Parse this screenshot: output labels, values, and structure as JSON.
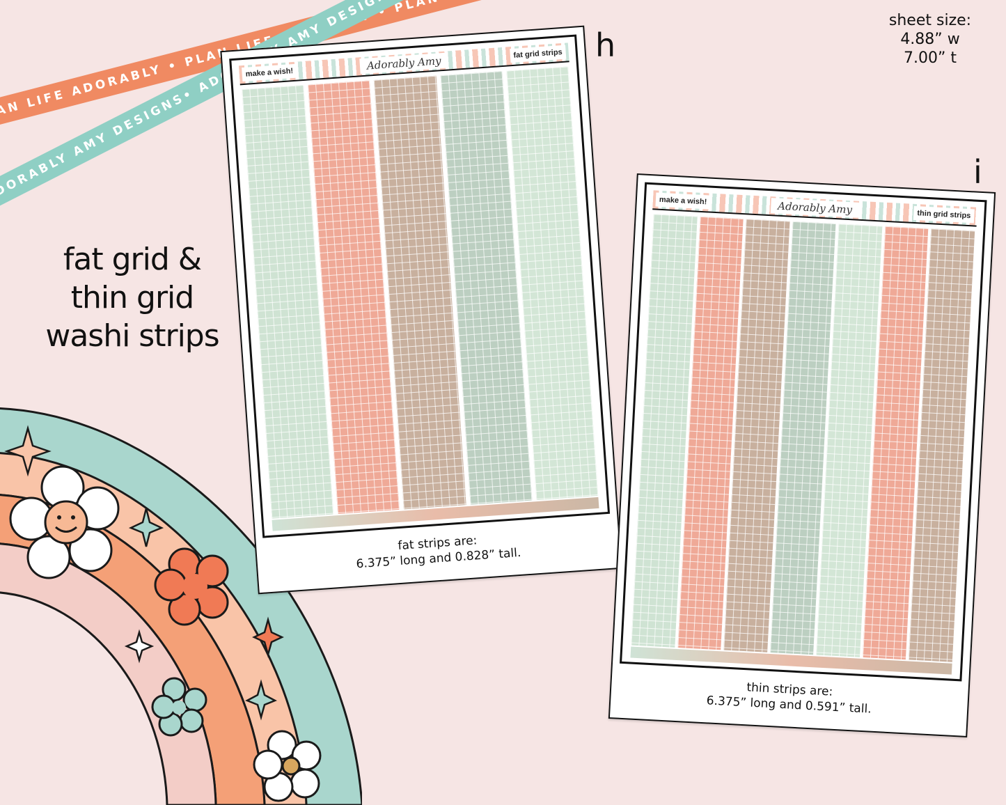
{
  "ribbons": {
    "coral_text": "PLAN LIFE ADORABLY • PLAN LIFE ADORABLY • PLAN LIFE ADORABLY •",
    "mint_text": "ADORABLY AMY DESIGNS• ADORABLY AMY DESIGNS• ADORABLY AMY DESIGNS•"
  },
  "heading": {
    "line1": "fat grid &",
    "line2": "thin grid",
    "line3": "washi strips"
  },
  "sheet_size": {
    "line1": "sheet size:",
    "line2": "4.88” w",
    "line3": "7.00” t"
  },
  "sheet_h": {
    "letter": "h",
    "left_label": "make a wish!",
    "logo": "Adorably Amy",
    "right_label": "fat grid strips",
    "caption_line1": "fat strips are:",
    "caption_line2": "6.375” long and 0.828” tall."
  },
  "sheet_i": {
    "letter": "i",
    "left_label": "make a wish!",
    "logo": "Adorably Amy",
    "right_label": "thin grid strips",
    "caption_line1": "thin strips are:",
    "caption_line2": "6.375” long and 0.591” tall."
  },
  "colors": {
    "background": "#f6e5e4",
    "coral": "#f08a62",
    "mint": "#8fcfc4",
    "strip_sage": "#cfe3d3",
    "strip_pink": "#efa997",
    "strip_tan": "#c8b09e",
    "strip_grey_green": "#bccfc1"
  }
}
